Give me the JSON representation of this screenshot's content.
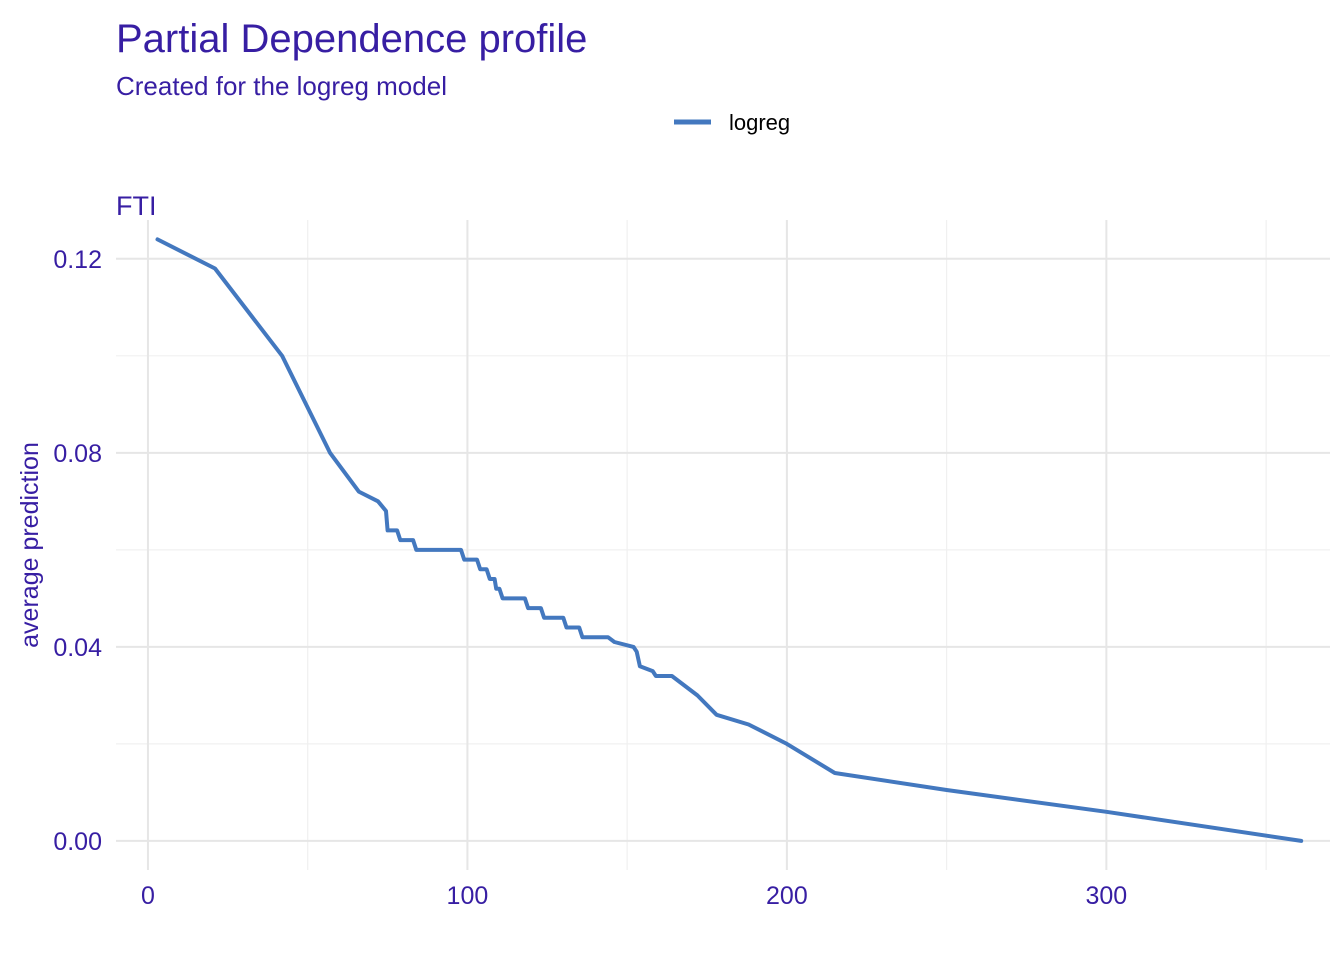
{
  "colors": {
    "text": "#371ea3",
    "line": "#4378bf",
    "grid": "#e6e6e6"
  },
  "chart_data": {
    "type": "line",
    "title": "Partial Dependence profile",
    "subtitle": "Created for the logreg model",
    "panel_title": "FTI",
    "xlabel": "",
    "ylabel": "average prediction",
    "xlim": [
      -10,
      370
    ],
    "ylim": [
      -0.006,
      0.128
    ],
    "x_ticks": [
      0,
      100,
      200,
      300
    ],
    "x_tick_labels": [
      "0",
      "100",
      "200",
      "300"
    ],
    "y_ticks": [
      0,
      0.04,
      0.08,
      0.12
    ],
    "y_tick_labels": [
      "0.00",
      "0.04",
      "0.08",
      "0.12"
    ],
    "grid": true,
    "legend": {
      "position": "top",
      "entries": [
        "logreg"
      ]
    },
    "series": [
      {
        "name": "logreg",
        "color": "#4378bf",
        "x": [
          3,
          21,
          42,
          57,
          66,
          72,
          74.5,
          75,
          78,
          79,
          83,
          84,
          98,
          99,
          103,
          104,
          106,
          107,
          108.5,
          109,
          110,
          111,
          118,
          119,
          123,
          124,
          130,
          131,
          135,
          136,
          144,
          146,
          152,
          153,
          154,
          158,
          159,
          164,
          172,
          178,
          188,
          200,
          215,
          250,
          300,
          361
        ],
        "y": [
          0.124,
          0.118,
          0.1,
          0.08,
          0.072,
          0.07,
          0.068,
          0.064,
          0.064,
          0.062,
          0.062,
          0.06,
          0.06,
          0.058,
          0.058,
          0.056,
          0.056,
          0.054,
          0.054,
          0.052,
          0.052,
          0.05,
          0.05,
          0.048,
          0.048,
          0.046,
          0.046,
          0.044,
          0.044,
          0.042,
          0.042,
          0.041,
          0.04,
          0.039,
          0.036,
          0.035,
          0.034,
          0.034,
          0.03,
          0.026,
          0.024,
          0.02,
          0.014,
          0.0105,
          0.006,
          0.0
        ]
      }
    ]
  }
}
